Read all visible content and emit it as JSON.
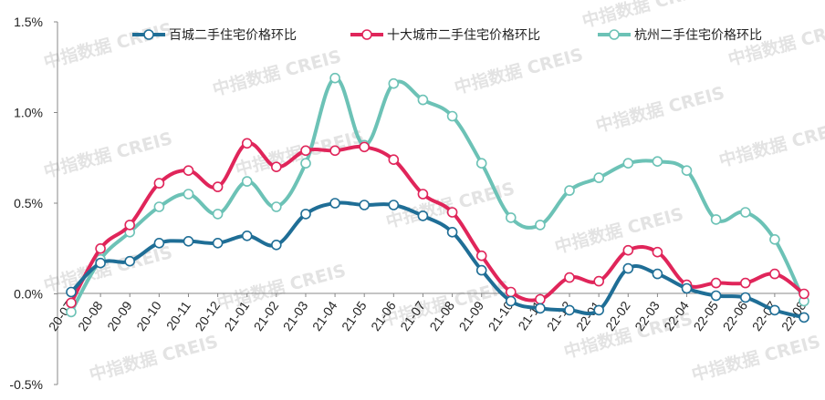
{
  "watermark": "中指数据 CREIS",
  "chart_data": {
    "type": "line",
    "categories": [
      "20-07",
      "20-08",
      "20-09",
      "20-10",
      "20-11",
      "20-12",
      "21-01",
      "21-02",
      "21-03",
      "21-04",
      "21-05",
      "21-06",
      "21-07",
      "21-08",
      "21-09",
      "21-10",
      "21-11",
      "21-12",
      "22-01",
      "22-02",
      "22-03",
      "22-04",
      "22-05",
      "22-06",
      "22-07",
      "22-08"
    ],
    "ylim": [
      -0.5,
      1.5
    ],
    "yticks": [
      -0.5,
      0.0,
      0.5,
      1.0,
      1.5
    ],
    "ytick_labels": [
      "-0.5%",
      "0.0%",
      "0.5%",
      "1.0%",
      "1.5%"
    ],
    "legend_position": "top",
    "grid": false,
    "series": [
      {
        "name": "百城二手住宅价格环比",
        "color": "#1f6e96",
        "values": [
          0.01,
          0.17,
          0.18,
          0.28,
          0.29,
          0.28,
          0.32,
          0.27,
          0.44,
          0.5,
          0.49,
          0.49,
          0.43,
          0.34,
          0.13,
          -0.04,
          -0.08,
          -0.09,
          -0.09,
          0.14,
          0.11,
          0.03,
          -0.01,
          -0.02,
          -0.09,
          -0.13
        ]
      },
      {
        "name": "十大城市二手住宅价格环比",
        "color": "#e0255a",
        "values": [
          -0.05,
          0.25,
          0.38,
          0.61,
          0.68,
          0.59,
          0.83,
          0.7,
          0.79,
          0.79,
          0.81,
          0.74,
          0.55,
          0.45,
          0.21,
          0.01,
          -0.03,
          0.09,
          0.07,
          0.24,
          0.23,
          0.05,
          0.06,
          0.06,
          0.11,
          0.0
        ]
      },
      {
        "name": "杭州二手住宅价格环比",
        "color": "#6cc2b6",
        "values": [
          -0.1,
          0.19,
          0.34,
          0.48,
          0.55,
          0.44,
          0.62,
          0.48,
          0.72,
          1.19,
          0.82,
          1.16,
          1.07,
          0.98,
          0.72,
          0.42,
          0.38,
          0.57,
          0.64,
          0.72,
          0.73,
          0.68,
          0.41,
          0.45,
          0.3,
          -0.04
        ]
      }
    ]
  }
}
